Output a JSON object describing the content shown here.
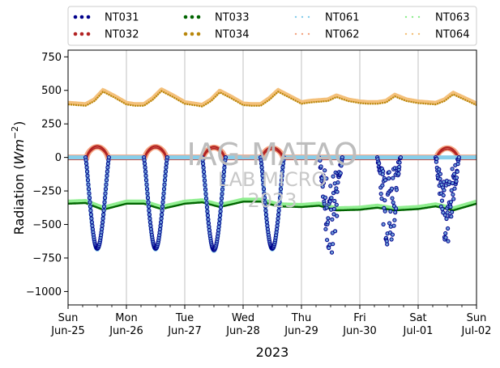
{
  "chart_data": {
    "type": "scatter",
    "title": "",
    "xlabel": "2023",
    "ylabel": "Radiation ($Wm^{-2}$)",
    "ylim": [
      -1100,
      800
    ],
    "yticks": [
      -1000,
      -750,
      -500,
      -250,
      0,
      250,
      500,
      750
    ],
    "ytick_labels": [
      "−1000",
      "−750",
      "−500",
      "−250",
      "0",
      "250",
      "500",
      "750"
    ],
    "xlim": [
      0,
      7
    ],
    "xticks": [
      {
        "day": 0,
        "weekday": "Sun",
        "date": "Jun-25"
      },
      {
        "day": 1,
        "weekday": "Mon",
        "date": "Jun-26"
      },
      {
        "day": 2,
        "weekday": "Tue",
        "date": "Jun-27"
      },
      {
        "day": 3,
        "weekday": "Wed",
        "date": "Jun-28"
      },
      {
        "day": 4,
        "weekday": "Thu",
        "date": "Jun-29"
      },
      {
        "day": 5,
        "weekday": "Fri",
        "date": "Jun-30"
      },
      {
        "day": 6,
        "weekday": "Sat",
        "date": "Jul-01"
      },
      {
        "day": 7,
        "weekday": "Sun",
        "date": "Jul-02"
      }
    ],
    "grid": "vertical",
    "legend_position": "top",
    "watermark": {
      "line1": "IAG-MATAO",
      "line2": "LAB MICRO",
      "line3": "2023"
    },
    "series": [
      {
        "name": "NT031",
        "color": "#00008b",
        "style": "dots",
        "kind": "net-shortwave",
        "daily_minimum": [
          -680,
          -680,
          -690,
          -680,
          -760,
          -730,
          -660
        ],
        "cloudy_from_day": 4
      },
      {
        "name": "NT032",
        "color": "#b22222",
        "style": "dots",
        "kind": "shortwave-up",
        "baseline": 0,
        "daily_peak": [
          85,
          85,
          80,
          75,
          0,
          0,
          75
        ]
      },
      {
        "name": "NT033",
        "color": "#006400",
        "style": "dots",
        "kind": "longwave-net",
        "points": [
          [
            0.0,
            -345
          ],
          [
            0.3,
            -340
          ],
          [
            0.6,
            -390
          ],
          [
            1.0,
            -345
          ],
          [
            1.3,
            -345
          ],
          [
            1.6,
            -385
          ],
          [
            2.0,
            -345
          ],
          [
            2.3,
            -335
          ],
          [
            2.6,
            -370
          ],
          [
            3.0,
            -330
          ],
          [
            3.3,
            -330
          ],
          [
            3.6,
            -365
          ],
          [
            4.0,
            -370
          ],
          [
            4.3,
            -360
          ],
          [
            4.6,
            -395
          ],
          [
            5.0,
            -390
          ],
          [
            5.3,
            -375
          ],
          [
            5.6,
            -395
          ],
          [
            6.0,
            -385
          ],
          [
            6.3,
            -365
          ],
          [
            6.6,
            -395
          ],
          [
            7.0,
            -345
          ]
        ]
      },
      {
        "name": "NT034",
        "color": "#b8860b",
        "style": "dots",
        "kind": "longwave-down",
        "points": [
          [
            0.0,
            395
          ],
          [
            0.15,
            390
          ],
          [
            0.3,
            385
          ],
          [
            0.45,
            420
          ],
          [
            0.6,
            490
          ],
          [
            0.8,
            445
          ],
          [
            1.0,
            395
          ],
          [
            1.15,
            385
          ],
          [
            1.3,
            385
          ],
          [
            1.45,
            430
          ],
          [
            1.6,
            495
          ],
          [
            1.8,
            450
          ],
          [
            2.0,
            400
          ],
          [
            2.15,
            390
          ],
          [
            2.3,
            380
          ],
          [
            2.45,
            420
          ],
          [
            2.6,
            485
          ],
          [
            2.8,
            440
          ],
          [
            3.0,
            390
          ],
          [
            3.15,
            385
          ],
          [
            3.3,
            385
          ],
          [
            3.45,
            430
          ],
          [
            3.6,
            490
          ],
          [
            3.8,
            445
          ],
          [
            4.0,
            400
          ],
          [
            4.15,
            410
          ],
          [
            4.3,
            415
          ],
          [
            4.45,
            420
          ],
          [
            4.6,
            450
          ],
          [
            4.8,
            420
          ],
          [
            5.0,
            405
          ],
          [
            5.15,
            400
          ],
          [
            5.3,
            400
          ],
          [
            5.45,
            410
          ],
          [
            5.6,
            455
          ],
          [
            5.8,
            420
          ],
          [
            6.0,
            405
          ],
          [
            6.15,
            400
          ],
          [
            6.3,
            395
          ],
          [
            6.45,
            420
          ],
          [
            6.6,
            470
          ],
          [
            6.8,
            430
          ],
          [
            7.0,
            390
          ]
        ]
      },
      {
        "name": "NT061",
        "color": "#87ceeb",
        "style": "dotted-line"
      },
      {
        "name": "NT062",
        "color": "#f4a582",
        "style": "dotted-line"
      },
      {
        "name": "NT063",
        "color": "#90ee90",
        "style": "dotted-line"
      },
      {
        "name": "NT064",
        "color": "#f4c07a",
        "style": "dotted-line"
      }
    ]
  }
}
